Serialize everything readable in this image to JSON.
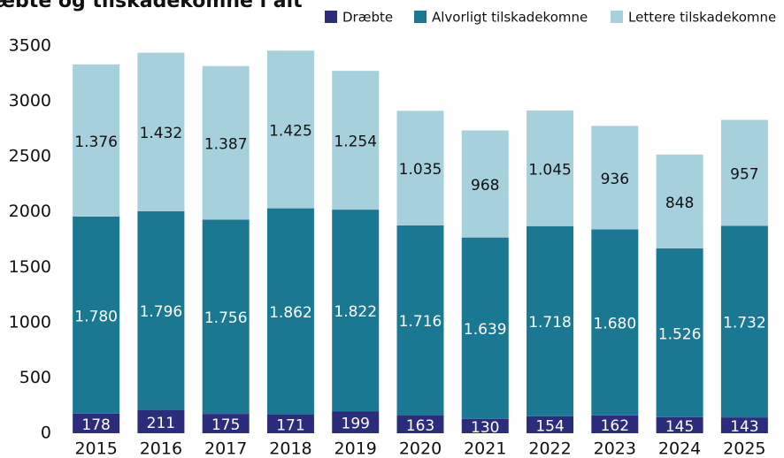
{
  "chart_data": {
    "type": "stacked_bar",
    "title": "æbte og tilskadekomne i alt",
    "categories": [
      "2015",
      "2016",
      "2017",
      "2018",
      "2019",
      "2020",
      "2021",
      "2022",
      "2023",
      "2024",
      "2025"
    ],
    "series": [
      {
        "name": "Dræbte",
        "color": "#2b2d7c",
        "values": [
          178,
          211,
          175,
          171,
          199,
          163,
          130,
          154,
          162,
          145,
          143
        ]
      },
      {
        "name": "Alvorligt tilskadekomne",
        "color": "#1b7892",
        "values": [
          1780,
          1796,
          1756,
          1862,
          1822,
          1716,
          1639,
          1718,
          1680,
          1526,
          1732
        ],
        "value_labels": [
          "1.780",
          "1.796",
          "1.756",
          "1.862",
          "1.822",
          "1.716",
          "1.639",
          "1.718",
          "1.680",
          "1.526",
          "1.732"
        ]
      },
      {
        "name": "Lettere tilskadekomne",
        "color": "#a6d1dc",
        "values": [
          1376,
          1432,
          1387,
          1425,
          1254,
          1035,
          968,
          1045,
          936,
          848,
          957
        ],
        "value_labels": [
          "1.376",
          "1.432",
          "1.387",
          "1.425",
          "1.254",
          "1.035",
          "968",
          "1.045",
          "936",
          "848",
          "957"
        ]
      }
    ],
    "ylim": [
      0,
      3500
    ],
    "yticks": [
      0,
      500,
      1000,
      1500,
      2000,
      2500,
      3000,
      3500
    ]
  }
}
